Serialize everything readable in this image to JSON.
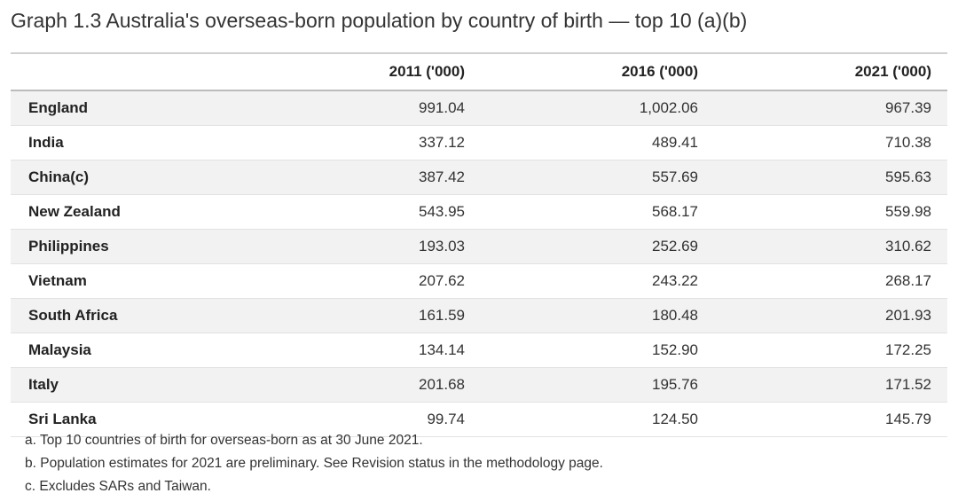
{
  "title": "Graph 1.3 Australia's overseas-born population by country of birth — top 10 (a)(b)",
  "table": {
    "columns": [
      "",
      "2011 ('000)",
      "2016 ('000)",
      "2021 ('000)"
    ],
    "rows": [
      [
        "England",
        "991.04",
        "1,002.06",
        "967.39"
      ],
      [
        "India",
        "337.12",
        "489.41",
        "710.38"
      ],
      [
        "China(c)",
        "387.42",
        "557.69",
        "595.63"
      ],
      [
        "New Zealand",
        "543.95",
        "568.17",
        "559.98"
      ],
      [
        "Philippines",
        "193.03",
        "252.69",
        "310.62"
      ],
      [
        "Vietnam",
        "207.62",
        "243.22",
        "268.17"
      ],
      [
        "South Africa",
        "161.59",
        "180.48",
        "201.93"
      ],
      [
        "Malaysia",
        "134.14",
        "152.90",
        "172.25"
      ],
      [
        "Italy",
        "201.68",
        "195.76",
        "171.52"
      ],
      [
        "Sri Lanka",
        "99.74",
        "124.50",
        "145.79"
      ]
    ]
  },
  "notes": [
    "a. Top 10 countries of birth for overseas-born as at 30 June 2021.",
    "b. Population estimates for 2021 are preliminary. See Revision status in the methodology page.",
    "c. Excludes SARs and Taiwan."
  ]
}
